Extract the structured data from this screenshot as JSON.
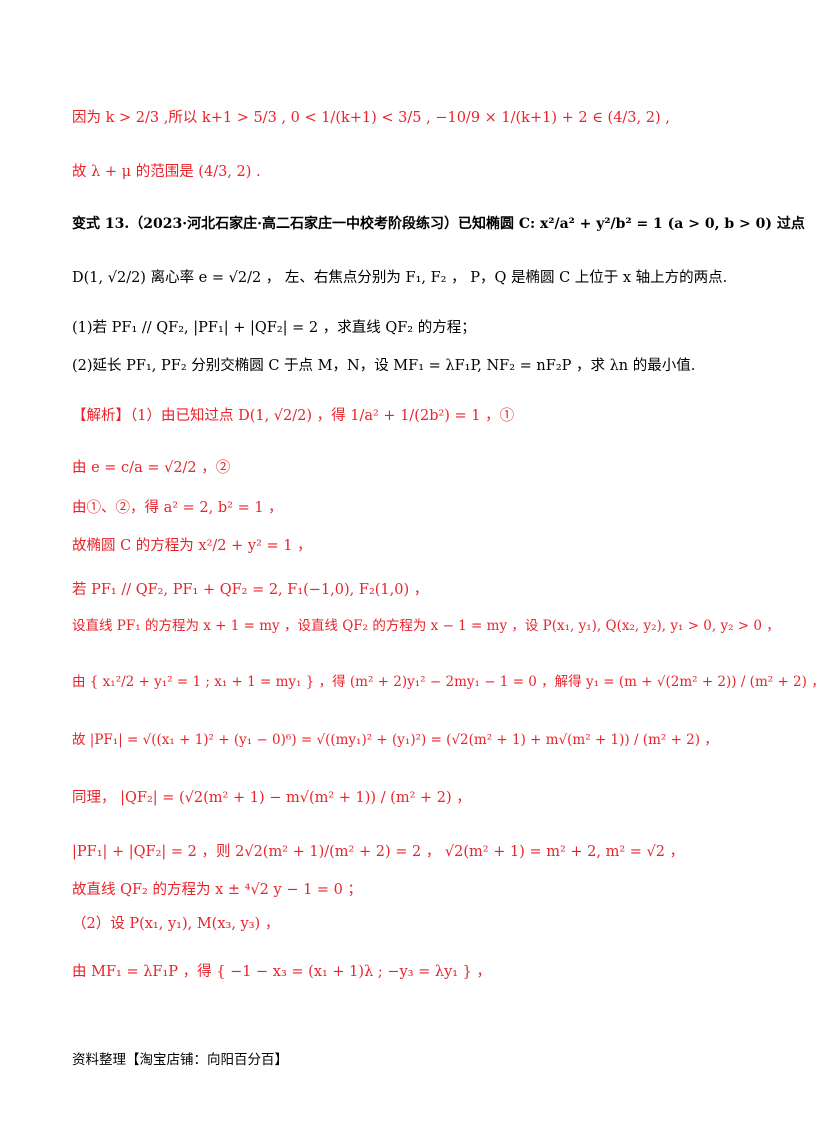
{
  "lines": [
    {
      "text": "因为 k > 2/3 ,所以 k+1 > 5/3 , 0 < 1/(k+1) < 3/5 , −10/9 × 1/(k+1) + 2 ∈ (4/3, 2) ,",
      "color": "red"
    },
    {
      "text": "故 λ + μ 的范围是 (4/3, 2) .",
      "color": "red"
    },
    {
      "text": "变式 13.（2023·河北石家庄·高二石家庄一中校考阶段练习）已知椭圆 C: x²/a² + y²/b² = 1 (a > 0, b > 0) 过点",
      "color": "black"
    },
    {
      "text": "D(1, √2/2) 离心率 e = √2/2 ， 左、右焦点分别为 F₁, F₂ ， P，Q 是椭圆 C 上位于 x 轴上方的两点.",
      "color": "black"
    },
    {
      "text": "(1)若 PF₁ // QF₂, |PF₁| + |QF₂| = 2 ，求直线 QF₂ 的方程；",
      "color": "black"
    },
    {
      "text": "(2)延长 PF₁, PF₂ 分别交椭圆 C 于点 M，N，设 MF₁ = λF₁P, NF₂ = nF₂P ，求 λn 的最小值.",
      "color": "black"
    },
    {
      "text": "【解析】（1）由已知过点 D(1, √2/2) ，得 1/a² + 1/(2b²) = 1 ，①",
      "color": "red"
    },
    {
      "text": "由 e = c/a = √2/2 ，②",
      "color": "red"
    },
    {
      "text": "由①、②，得 a² = 2, b² = 1 ，",
      "color": "red"
    },
    {
      "text": "故椭圆 C 的方程为 x²/2 + y² = 1 ，",
      "color": "red"
    },
    {
      "text": "若 PF₁ // QF₂, PF₁ + QF₂ = 2, F₁(−1,0), F₂(1,0) ，",
      "color": "red"
    },
    {
      "text": "设直线 PF₁ 的方程为 x + 1 = my ，设直线 QF₂ 的方程为 x − 1 = my ，设 P(x₁, y₁), Q(x₂, y₂), y₁ > 0, y₂ > 0 ，",
      "color": "red"
    },
    {
      "text": "由 { x₁²/2 + y₁² = 1 ; x₁ + 1 = my₁ } ，得 (m² + 2)y₁² − 2my₁ − 1 = 0 ，解得 y₁ = (m + √(2m² + 2)) / (m² + 2) ，",
      "color": "red"
    },
    {
      "text": "故 |PF₁| = √((x₁ + 1)² + (y₁ − 0)⁶) = √((my₁)² + (y₁)²) = (√2(m² + 1) + m√(m² + 1)) / (m² + 2) ，",
      "color": "red"
    },
    {
      "text": "同理， |QF₂| = (√2(m² + 1) − m√(m² + 1)) / (m² + 2) ，",
      "color": "red"
    },
    {
      "text": "|PF₁| + |QF₂| = 2 ，则 2√2(m² + 1)/(m² + 2) = 2 ， √2(m² + 1) = m² + 2, m² = √2 ，",
      "color": "red"
    },
    {
      "text": "故直线 QF₂ 的方程为 x ± ⁴√2 y − 1 = 0 ；",
      "color": "red"
    },
    {
      "text": "（2）设 P(x₁, y₁), M(x₃, y₃) ，",
      "color": "red"
    },
    {
      "text": "由 MF₁ = λF₁P ，得 { −1 − x₃ = (x₁ + 1)λ ; −y₃ = λy₁ } ，",
      "color": "red"
    }
  ],
  "footer": "资料整理【淘宝店铺：向阳百分百】"
}
